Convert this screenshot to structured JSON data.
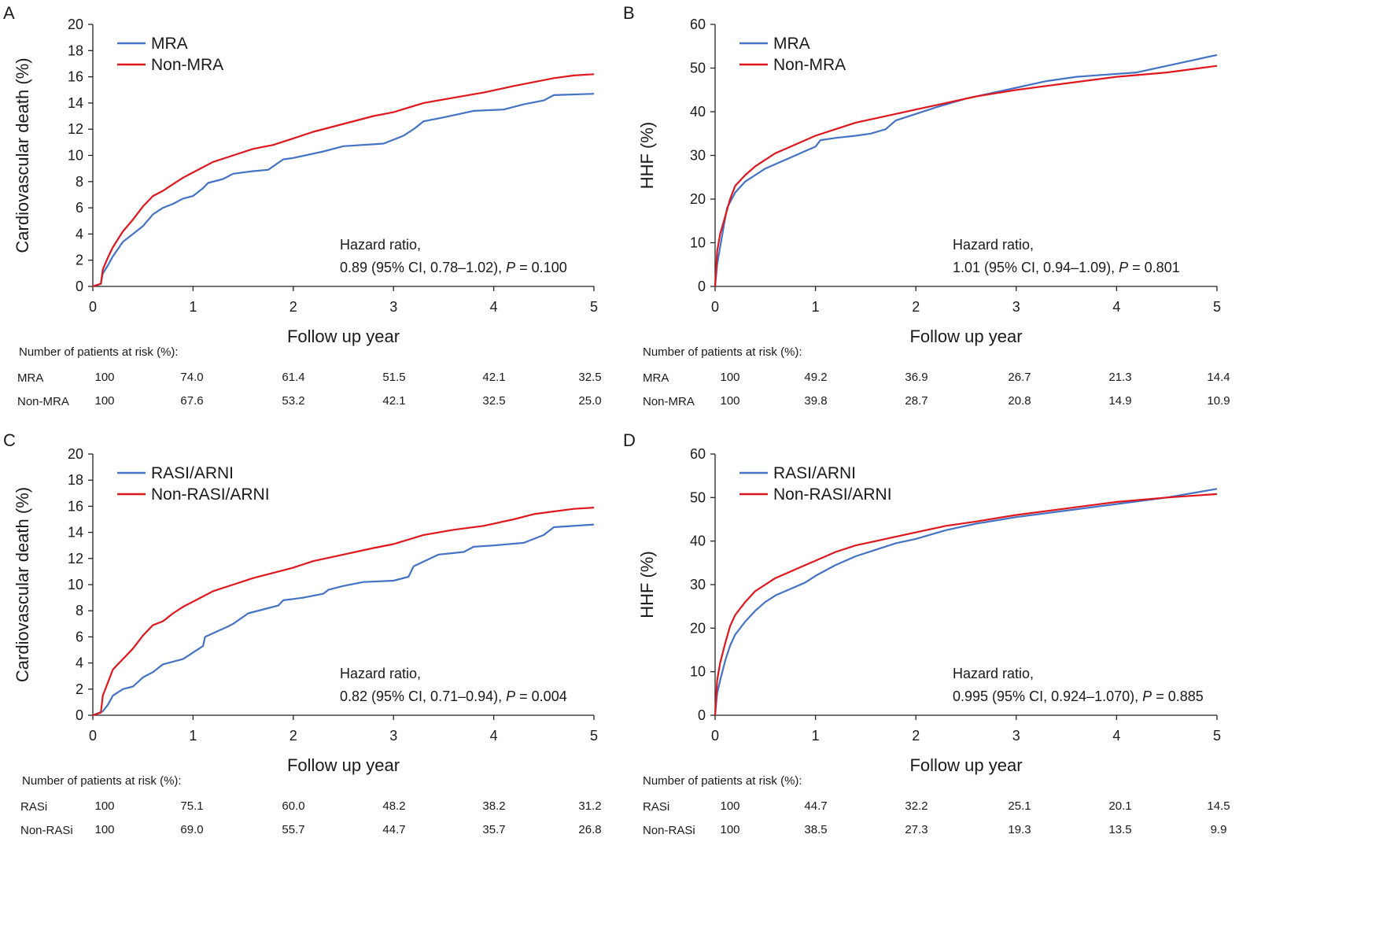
{
  "colors": {
    "series1": "#4472c4",
    "series2": "#e0161d",
    "axis": "#222222"
  },
  "chart_data": [
    {
      "panel": "A",
      "type": "line",
      "title": "",
      "xlabel": "Follow up year",
      "ylabel": "Cardiovascular death (%)",
      "xlim": [
        0,
        5
      ],
      "ylim": [
        0,
        20
      ],
      "xticks": [
        0,
        1,
        2,
        3,
        4,
        5
      ],
      "yticks": [
        0,
        2,
        4,
        6,
        8,
        10,
        12,
        14,
        16,
        18,
        20
      ],
      "legend": [
        "MRA",
        "Non-MRA"
      ],
      "hr_line1": "Hazard ratio,",
      "hr_line2_prefix": "0.89 (95% CI, 0.78–1.02), ",
      "p_label": "P",
      "p_value": " = 0.100",
      "series": [
        {
          "name": "MRA",
          "x": [
            0,
            0.08,
            0.1,
            0.15,
            0.2,
            0.3,
            0.4,
            0.5,
            0.6,
            0.7,
            0.8,
            0.9,
            1.0,
            1.1,
            1.15,
            1.3,
            1.4,
            1.6,
            1.75,
            1.9,
            2.0,
            2.3,
            2.5,
            2.9,
            3.1,
            3.2,
            3.3,
            3.5,
            3.8,
            4.1,
            4.3,
            4.5,
            4.6,
            5.0
          ],
          "values": [
            0,
            0.2,
            1.0,
            1.6,
            2.3,
            3.4,
            4.0,
            4.6,
            5.5,
            6.0,
            6.3,
            6.7,
            6.9,
            7.5,
            7.9,
            8.2,
            8.6,
            8.8,
            8.9,
            9.7,
            9.8,
            10.3,
            10.7,
            10.9,
            11.5,
            12.0,
            12.6,
            12.9,
            13.4,
            13.5,
            13.9,
            14.2,
            14.6,
            14.7
          ]
        },
        {
          "name": "Non-MRA",
          "x": [
            0,
            0.08,
            0.1,
            0.15,
            0.2,
            0.3,
            0.4,
            0.5,
            0.6,
            0.7,
            0.8,
            0.9,
            1.0,
            1.2,
            1.4,
            1.6,
            1.8,
            2.0,
            2.2,
            2.5,
            2.8,
            3.0,
            3.3,
            3.6,
            3.9,
            4.2,
            4.4,
            4.6,
            4.8,
            5.0
          ],
          "values": [
            0,
            0.2,
            1.3,
            2.2,
            3.0,
            4.2,
            5.1,
            6.1,
            6.9,
            7.3,
            7.8,
            8.3,
            8.7,
            9.5,
            10.0,
            10.5,
            10.8,
            11.3,
            11.8,
            12.4,
            13.0,
            13.3,
            14.0,
            14.4,
            14.8,
            15.3,
            15.6,
            15.9,
            16.1,
            16.2
          ]
        }
      ],
      "risk_title": "Number of patients at risk (%):",
      "risk_rows": [
        {
          "label": "MRA",
          "values": [
            "100",
            "74.0",
            "61.4",
            "51.5",
            "42.1",
            "32.5"
          ]
        },
        {
          "label": "Non-MRA",
          "values": [
            "100",
            "67.6",
            "53.2",
            "42.1",
            "32.5",
            "25.0"
          ]
        }
      ]
    },
    {
      "panel": "B",
      "type": "line",
      "title": "",
      "xlabel": "Follow up year",
      "ylabel": "HHF (%)",
      "xlim": [
        0,
        5
      ],
      "ylim": [
        0,
        60
      ],
      "xticks": [
        0,
        1,
        2,
        3,
        4,
        5
      ],
      "yticks": [
        0,
        10,
        20,
        30,
        40,
        50,
        60
      ],
      "legend": [
        "MRA",
        "Non-MRA"
      ],
      "hr_line1": "Hazard ratio,",
      "hr_line2_prefix": "1.01 (95% CI, 0.94–1.09), ",
      "p_label": "P",
      "p_value": " = 0.801",
      "series": [
        {
          "name": "MRA",
          "x": [
            0,
            0.02,
            0.05,
            0.08,
            0.12,
            0.2,
            0.3,
            0.4,
            0.5,
            0.6,
            0.7,
            0.8,
            0.9,
            1.0,
            1.05,
            1.2,
            1.4,
            1.55,
            1.7,
            1.8,
            2.0,
            2.2,
            2.5,
            2.8,
            3.0,
            3.3,
            3.6,
            3.9,
            4.2,
            4.5,
            4.7,
            4.9,
            5.0
          ],
          "values": [
            0,
            5.0,
            9.0,
            13.0,
            18.0,
            21.5,
            24.0,
            25.5,
            27.0,
            28.0,
            29.0,
            30.0,
            31.0,
            32.0,
            33.5,
            34.0,
            34.5,
            35.0,
            36.0,
            38.0,
            39.5,
            41.0,
            43.0,
            44.5,
            45.5,
            47.0,
            48.0,
            48.5,
            49.0,
            50.5,
            51.5,
            52.5,
            53.0
          ]
        },
        {
          "name": "Non-MRA",
          "x": [
            0,
            0.02,
            0.05,
            0.1,
            0.15,
            0.2,
            0.3,
            0.4,
            0.5,
            0.6,
            0.7,
            0.8,
            0.9,
            1.0,
            1.2,
            1.4,
            1.6,
            1.8,
            2.0,
            2.3,
            2.6,
            3.0,
            3.5,
            4.0,
            4.5,
            5.0
          ],
          "values": [
            0,
            8.0,
            12.0,
            16.0,
            20.0,
            23.0,
            25.5,
            27.5,
            29.0,
            30.5,
            31.5,
            32.5,
            33.5,
            34.5,
            36.0,
            37.5,
            38.5,
            39.5,
            40.5,
            42.0,
            43.5,
            45.0,
            46.5,
            48.0,
            49.0,
            50.5
          ]
        }
      ],
      "risk_title": "Number of patients at risk (%):",
      "risk_rows": [
        {
          "label": "MRA",
          "values": [
            "100",
            "49.2",
            "36.9",
            "26.7",
            "21.3",
            "14.4"
          ]
        },
        {
          "label": "Non-MRA",
          "values": [
            "100",
            "39.8",
            "28.7",
            "20.8",
            "14.9",
            "10.9"
          ]
        }
      ]
    },
    {
      "panel": "C",
      "type": "line",
      "title": "",
      "xlabel": "Follow up year",
      "ylabel": "Cardiovascular death (%)",
      "xlim": [
        0,
        5
      ],
      "ylim": [
        0,
        20
      ],
      "xticks": [
        0,
        1,
        2,
        3,
        4,
        5
      ],
      "yticks": [
        0,
        2,
        4,
        6,
        8,
        10,
        12,
        14,
        16,
        18,
        20
      ],
      "legend": [
        "RASI/ARNI",
        "Non-RASI/ARNI"
      ],
      "hr_line1": "Hazard ratio,",
      "hr_line2_prefix": "0.82 (95% CI, 0.71–0.94), ",
      "p_label": "P",
      "p_value": " = 0.004",
      "series": [
        {
          "name": "RASI/ARNI",
          "x": [
            0,
            0.1,
            0.15,
            0.2,
            0.3,
            0.4,
            0.5,
            0.6,
            0.7,
            0.9,
            1.0,
            1.1,
            1.12,
            1.35,
            1.4,
            1.55,
            1.7,
            1.85,
            1.9,
            2.1,
            2.3,
            2.35,
            2.5,
            2.7,
            3.0,
            3.15,
            3.2,
            3.45,
            3.7,
            3.8,
            4.0,
            4.3,
            4.5,
            4.6,
            5.0
          ],
          "values": [
            0,
            0.3,
            0.8,
            1.5,
            2.0,
            2.2,
            2.9,
            3.3,
            3.9,
            4.3,
            4.8,
            5.3,
            6.0,
            6.8,
            7.0,
            7.8,
            8.1,
            8.4,
            8.8,
            9.0,
            9.3,
            9.6,
            9.9,
            10.2,
            10.3,
            10.6,
            11.4,
            12.3,
            12.5,
            12.9,
            13.0,
            13.2,
            13.8,
            14.4,
            14.6
          ]
        },
        {
          "name": "Non-RASI/ARNI",
          "x": [
            0,
            0.08,
            0.1,
            0.15,
            0.2,
            0.3,
            0.4,
            0.5,
            0.6,
            0.7,
            0.8,
            0.9,
            1.0,
            1.2,
            1.4,
            1.6,
            1.8,
            2.0,
            2.2,
            2.5,
            2.8,
            3.0,
            3.3,
            3.6,
            3.9,
            4.2,
            4.4,
            4.6,
            4.8,
            5.0
          ],
          "values": [
            0,
            0.2,
            1.5,
            2.5,
            3.5,
            4.3,
            5.1,
            6.1,
            6.9,
            7.2,
            7.8,
            8.3,
            8.7,
            9.5,
            10.0,
            10.5,
            10.9,
            11.3,
            11.8,
            12.3,
            12.8,
            13.1,
            13.8,
            14.2,
            14.5,
            15.0,
            15.4,
            15.6,
            15.8,
            15.9
          ]
        }
      ],
      "risk_title": "Number of patients at risk (%):",
      "risk_rows": [
        {
          "label": "RASi",
          "values": [
            "100",
            "75.1",
            "60.0",
            "48.2",
            "38.2",
            "31.2"
          ]
        },
        {
          "label": "Non-RASi",
          "values": [
            "100",
            "69.0",
            "55.7",
            "44.7",
            "35.7",
            "26.8"
          ]
        }
      ]
    },
    {
      "panel": "D",
      "type": "line",
      "title": "",
      "xlabel": "Follow up year",
      "ylabel": "HHF (%)",
      "xlim": [
        0,
        5
      ],
      "ylim": [
        0,
        60
      ],
      "xticks": [
        0,
        1,
        2,
        3,
        4,
        5
      ],
      "yticks": [
        0,
        10,
        20,
        30,
        40,
        50,
        60
      ],
      "legend": [
        "RASI/ARNI",
        "Non-RASI/ARNI"
      ],
      "hr_line1": "Hazard ratio,",
      "hr_line2_prefix": "0.995 (95% CI, 0.924–1.070), ",
      "p_label": "P",
      "p_value": " = 0.885",
      "series": [
        {
          "name": "RASI/ARNI",
          "x": [
            0,
            0.02,
            0.05,
            0.1,
            0.15,
            0.2,
            0.3,
            0.4,
            0.5,
            0.6,
            0.7,
            0.8,
            0.9,
            1.0,
            1.2,
            1.4,
            1.6,
            1.8,
            2.0,
            2.3,
            2.6,
            3.0,
            3.5,
            4.0,
            4.5,
            5.0
          ],
          "values": [
            0,
            5.0,
            8.0,
            12.5,
            16.0,
            18.5,
            21.5,
            24.0,
            26.0,
            27.5,
            28.5,
            29.5,
            30.5,
            32.0,
            34.5,
            36.5,
            38.0,
            39.5,
            40.5,
            42.5,
            44.0,
            45.5,
            47.0,
            48.5,
            50.0,
            52.0
          ]
        },
        {
          "name": "Non-RASI/ARNI",
          "x": [
            0,
            0.02,
            0.05,
            0.1,
            0.15,
            0.2,
            0.3,
            0.4,
            0.5,
            0.6,
            0.7,
            0.8,
            0.9,
            1.0,
            1.2,
            1.4,
            1.6,
            1.8,
            2.0,
            2.3,
            2.6,
            3.0,
            3.5,
            4.0,
            4.5,
            5.0
          ],
          "values": [
            0,
            8.0,
            12.0,
            16.5,
            20.5,
            23.0,
            26.0,
            28.5,
            30.0,
            31.5,
            32.5,
            33.5,
            34.5,
            35.5,
            37.5,
            39.0,
            40.0,
            41.0,
            42.0,
            43.5,
            44.5,
            46.0,
            47.5,
            49.0,
            50.0,
            50.8
          ]
        }
      ],
      "risk_title": "Number of patients at risk (%):",
      "risk_rows": [
        {
          "label": "RASi",
          "values": [
            "100",
            "44.7",
            "32.2",
            "25.1",
            "20.1",
            "14.5"
          ]
        },
        {
          "label": "Non-RASi",
          "values": [
            "100",
            "38.5",
            "27.3",
            "19.3",
            "13.5",
            "9.9"
          ]
        }
      ]
    }
  ]
}
